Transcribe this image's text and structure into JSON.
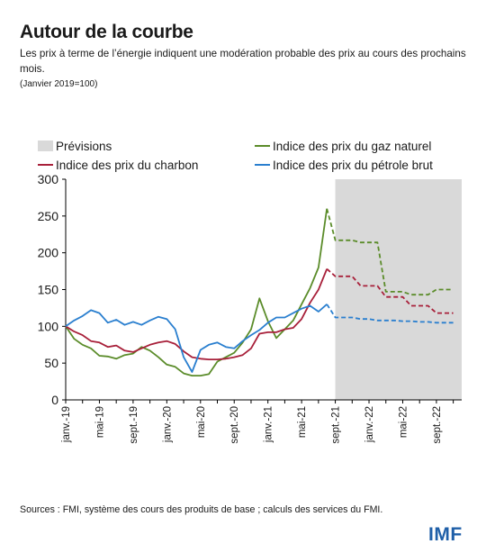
{
  "header": {
    "title": "Autour de la courbe",
    "subtitle": "Les prix à terme de l’énergie indiquent une modération probable des prix au cours des prochains mois.",
    "unit_note": "(Janvier 2019=100)"
  },
  "source": "Sources : FMI, système des cours des produits de base ; calculs des services du FMI.",
  "logo": "IMF",
  "colors": {
    "gas": "#5b8c2a",
    "coal": "#a8203a",
    "oil": "#2a7fcf",
    "forecast_shade": "#d9d9d9"
  },
  "chart_data": {
    "type": "line",
    "ylim": [
      0,
      300
    ],
    "yticks": [
      0,
      50,
      100,
      150,
      200,
      250,
      300
    ],
    "x_tick_labels": [
      "janv.-19",
      "mai-19",
      "sept.-19",
      "janv.-20",
      "mai-20",
      "sept.-20",
      "janv.-21",
      "mai-21",
      "sept.-21",
      "janv.-22",
      "mai-22",
      "sept.-22"
    ],
    "x_tick_month_index": [
      0,
      4,
      8,
      12,
      16,
      20,
      24,
      28,
      32,
      36,
      40,
      44
    ],
    "forecast": {
      "label": "Prévisions",
      "start_month_index": 32,
      "end_month_index": 47
    },
    "series": [
      {
        "name": "Indice des prix du gaz naturel",
        "key": "gas",
        "actual": [
          100,
          83,
          75,
          70,
          60,
          59,
          56,
          61,
          63,
          72,
          67,
          58,
          48,
          45,
          36,
          33,
          33,
          35,
          52,
          58,
          64,
          78,
          96,
          138,
          107,
          84,
          96,
          108,
          130,
          152,
          180,
          260
        ],
        "forecast": [
          260,
          217,
          217,
          217,
          214,
          214,
          214,
          147,
          147,
          147,
          143,
          143,
          143,
          150,
          150,
          150
        ]
      },
      {
        "name": "Indice des prix du charbon",
        "key": "coal",
        "actual": [
          100,
          93,
          88,
          80,
          78,
          72,
          74,
          67,
          65,
          70,
          75,
          78,
          80,
          76,
          66,
          58,
          56,
          55,
          55,
          56,
          58,
          61,
          70,
          90,
          92,
          92,
          96,
          98,
          110,
          132,
          150,
          178
        ],
        "forecast": [
          178,
          168,
          168,
          168,
          155,
          155,
          155,
          140,
          140,
          140,
          128,
          128,
          128,
          118,
          118,
          118
        ]
      },
      {
        "name": "Indice des prix du pétrole brut",
        "key": "oil",
        "actual": [
          100,
          108,
          114,
          122,
          118,
          105,
          109,
          102,
          106,
          102,
          108,
          113,
          110,
          96,
          58,
          38,
          68,
          75,
          78,
          72,
          70,
          80,
          88,
          95,
          105,
          112,
          112,
          118,
          124,
          128,
          120,
          130
        ],
        "forecast": [
          130,
          112,
          112,
          112,
          110,
          110,
          108,
          108,
          108,
          107,
          107,
          106,
          106,
          105,
          105,
          105
        ]
      }
    ]
  }
}
